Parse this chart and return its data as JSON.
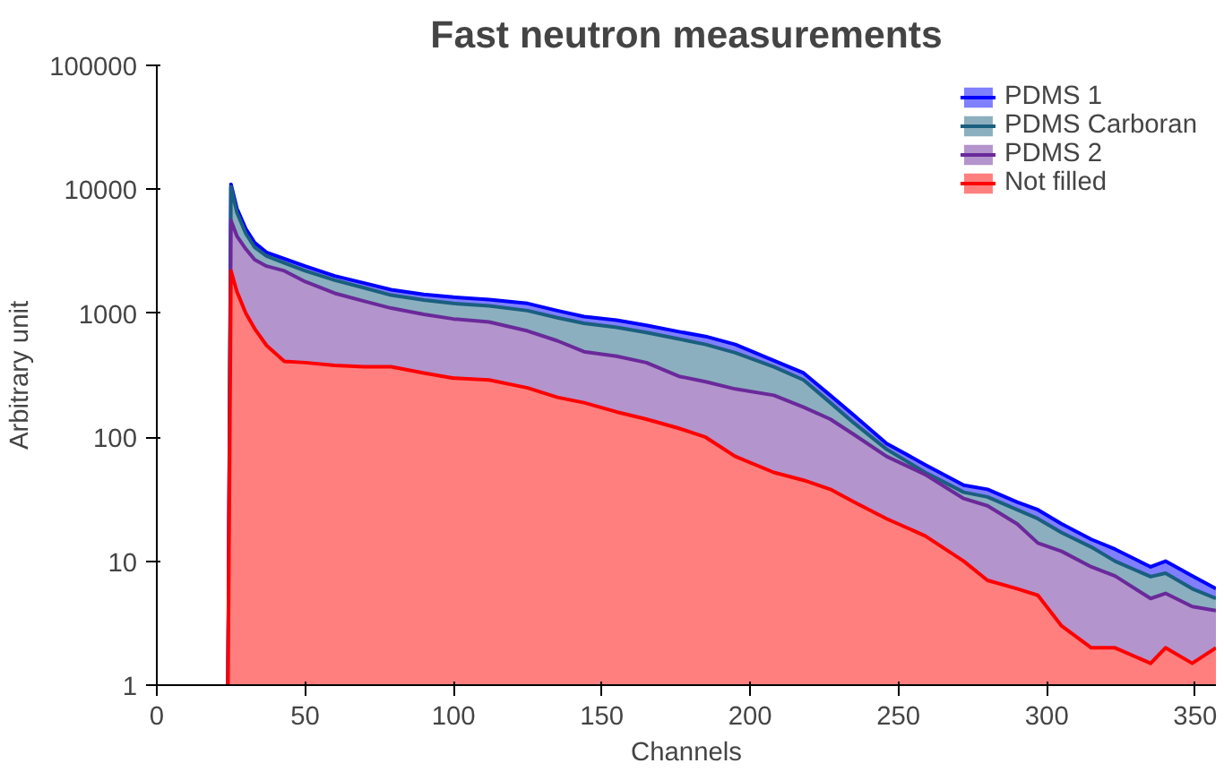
{
  "chart_data": {
    "type": "area",
    "title": "Fast neutron measurements",
    "xlabel": "Channels",
    "ylabel": "Arbitrary unit",
    "x": [
      24,
      25,
      27,
      30,
      33,
      37,
      43,
      50,
      60,
      70,
      79,
      90,
      100,
      112,
      125,
      135,
      144,
      155,
      165,
      176,
      185,
      195,
      208,
      218,
      227,
      235,
      246,
      259,
      272,
      280,
      290,
      297,
      305,
      315,
      323,
      335,
      340,
      349,
      357
    ],
    "series": [
      {
        "name": "PDMS 1",
        "color": "#0000ff",
        "values": [
          1,
          11000,
          7000,
          4800,
          3700,
          3100,
          2760,
          2400,
          2000,
          1750,
          1550,
          1420,
          1350,
          1290,
          1200,
          1050,
          940,
          880,
          800,
          710,
          650,
          560,
          415,
          330,
          218,
          150,
          89,
          60,
          41,
          38,
          30,
          26,
          20,
          15,
          12.5,
          9,
          10,
          7.6,
          6
        ]
      },
      {
        "name": "PDMS Carboran",
        "color": "#1a5f7f",
        "values": [
          1,
          10500,
          6500,
          4400,
          3400,
          2900,
          2550,
          2200,
          1850,
          1600,
          1400,
          1280,
          1200,
          1150,
          1050,
          920,
          830,
          770,
          700,
          620,
          560,
          480,
          370,
          290,
          190,
          130,
          80,
          52,
          36,
          33,
          26,
          22,
          17,
          13,
          10,
          7.5,
          8,
          6,
          5
        ]
      },
      {
        "name": "PDMS 2",
        "color": "#6a2a9a",
        "values": [
          1,
          5600,
          4200,
          3300,
          2700,
          2400,
          2200,
          1800,
          1450,
          1250,
          1100,
          980,
          900,
          850,
          720,
          600,
          490,
          450,
          400,
          310,
          280,
          245,
          218,
          175,
          140,
          105,
          70,
          50,
          32,
          28,
          20,
          14,
          12,
          9,
          7.6,
          5,
          5.5,
          4.3,
          4
        ]
      },
      {
        "name": "Not filled",
        "color": "#ff0000",
        "values": [
          1,
          2200,
          1500,
          1000,
          750,
          550,
          410,
          400,
          380,
          370,
          370,
          330,
          300,
          290,
          250,
          210,
          190,
          160,
          140,
          118,
          100,
          70,
          52,
          45,
          38,
          30,
          22,
          16,
          10,
          7,
          6,
          5.3,
          3,
          2,
          2,
          1.5,
          2,
          1.5,
          2
        ]
      }
    ],
    "xlim": [
      0,
      357
    ],
    "ylim": [
      1,
      100000
    ],
    "xticks": [
      0,
      50,
      100,
      150,
      200,
      250,
      300,
      350
    ],
    "yticks": [
      1,
      10,
      100,
      1000,
      10000,
      100000
    ],
    "log": "y",
    "grid": false,
    "legend": "top right"
  }
}
